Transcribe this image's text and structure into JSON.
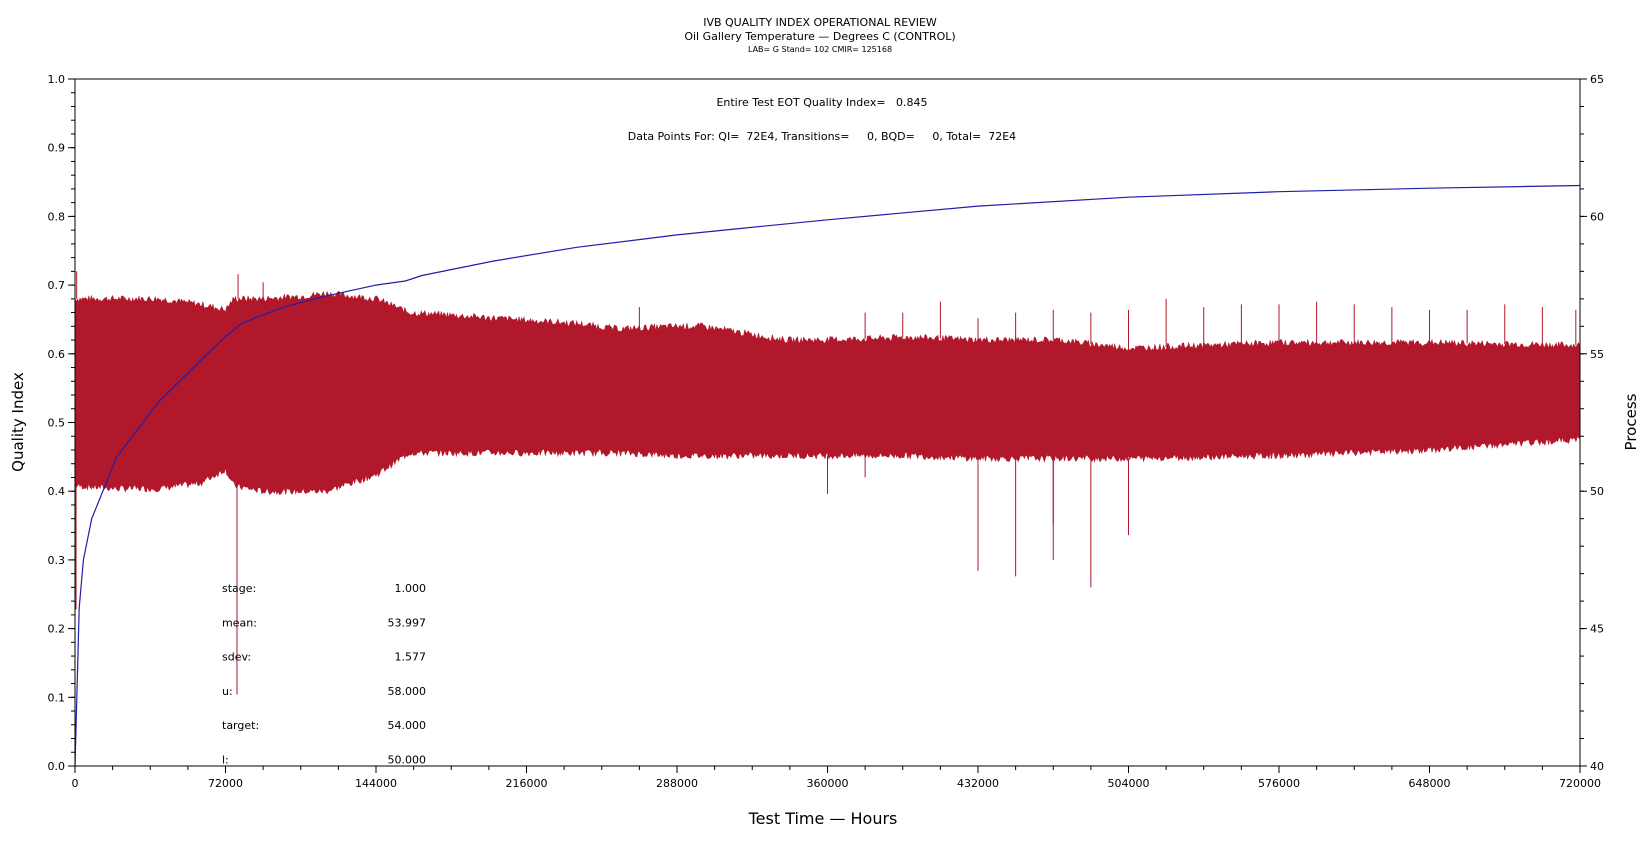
{
  "colors": {
    "ql": "#b2182b",
    "process": "#1f1fa8",
    "axis": "#000000",
    "background": "#ffffff"
  },
  "chart_data": {
    "type": "line",
    "title": "IVB QUALITY INDEX OPERATIONAL REVIEW",
    "subtitle": "Oil Gallery Temperature — Degrees C (CONTROL)",
    "subtitle2": "LAB= G Stand= 102 CMIR= 125168",
    "xlabel": "Test Time — Hours",
    "ylabel_left": "Quality Index",
    "ylabel_right": "Process",
    "xlim": [
      0,
      720000
    ],
    "ylim_left": [
      0,
      1
    ],
    "ylim_right": [
      40,
      65
    ],
    "x_ticks": [
      "0",
      "72000",
      "144000",
      "216000",
      "288000",
      "360000",
      "432000",
      "504000",
      "576000",
      "648000",
      "720000"
    ],
    "y_left_ticks": [
      "0.0",
      "0.1",
      "0.2",
      "0.3",
      "0.4",
      "0.5",
      "0.6",
      "0.7",
      "0.8",
      "0.9",
      "1.0"
    ],
    "y_right_ticks": [
      "40",
      "45",
      "50",
      "55",
      "60",
      "65"
    ],
    "annotations": {
      "eot": "Entire Test EOT Quality Index=   0.845",
      "points": "Data Points For: QI=  72E4, Transitions=     0, BQD=     0, Total=  72E4"
    },
    "stats": [
      {
        "label": "stage:",
        "value": "1.000"
      },
      {
        "label": "mean:",
        "value": "53.997"
      },
      {
        "label": "sdev:",
        "value": "1.577"
      },
      {
        "label": "u:",
        "value": "58.000"
      },
      {
        "label": "target:",
        "value": "54.000"
      },
      {
        "label": "l:",
        "value": "50.000"
      }
    ],
    "series": [
      {
        "role": "quality_index",
        "axis": "left",
        "x": [
          0,
          2000,
          4000,
          8000,
          20000,
          40000,
          60000,
          72000,
          76000,
          80000,
          100000,
          120000,
          144000,
          158000,
          166000,
          200000,
          240000,
          288000,
          320000,
          360000,
          432000,
          504000,
          576000,
          648000,
          720000
        ],
        "y": [
          0.0,
          0.23,
          0.3,
          0.36,
          0.45,
          0.53,
          0.59,
          0.625,
          0.635,
          0.645,
          0.668,
          0.684,
          0.7,
          0.706,
          0.714,
          0.735,
          0.755,
          0.773,
          0.783,
          0.795,
          0.815,
          0.828,
          0.836,
          0.841,
          0.845
        ]
      },
      {
        "role": "process",
        "axis": "right",
        "x": [
          0,
          20000,
          40000,
          60000,
          72000,
          76000,
          90000,
          110000,
          120000,
          144000,
          160000,
          200000,
          240000,
          260000,
          288000,
          300000,
          340000,
          360000,
          400000,
          432000,
          470000,
          504000,
          576000,
          648000,
          720000
        ],
        "upper": [
          57.0,
          57.0,
          57.0,
          56.8,
          56.6,
          57.0,
          57.0,
          57.1,
          57.2,
          57.0,
          56.5,
          56.3,
          56.1,
          55.9,
          56.0,
          56.0,
          55.5,
          55.5,
          55.6,
          55.5,
          55.5,
          55.2,
          55.4,
          55.4,
          55.3
        ],
        "lower": [
          50.2,
          50.1,
          50.1,
          50.3,
          50.8,
          50.2,
          50.0,
          50.0,
          50.0,
          50.6,
          51.4,
          51.4,
          51.4,
          51.4,
          51.3,
          51.3,
          51.3,
          51.3,
          51.3,
          51.2,
          51.2,
          51.2,
          51.3,
          51.5,
          51.9
        ]
      }
    ],
    "spikes": [
      {
        "x": 500,
        "value": 45.7
      },
      {
        "x": 800,
        "value": 58.0
      },
      {
        "x": 77500,
        "value": 42.6
      },
      {
        "x": 78000,
        "value": 57.9
      },
      {
        "x": 90000,
        "value": 57.6
      },
      {
        "x": 270000,
        "value": 56.7
      },
      {
        "x": 360000,
        "value": 49.9
      },
      {
        "x": 378000,
        "value": 56.5
      },
      {
        "x": 378000,
        "value": 50.5
      },
      {
        "x": 396000,
        "value": 56.5
      },
      {
        "x": 414000,
        "value": 56.9
      },
      {
        "x": 432000,
        "value": 47.1
      },
      {
        "x": 432000,
        "value": 56.3
      },
      {
        "x": 450000,
        "value": 46.9
      },
      {
        "x": 450000,
        "value": 56.5
      },
      {
        "x": 468000,
        "value": 48.8
      },
      {
        "x": 468000,
        "value": 47.5
      },
      {
        "x": 468000,
        "value": 56.6
      },
      {
        "x": 486000,
        "value": 46.5
      },
      {
        "x": 486000,
        "value": 56.5
      },
      {
        "x": 504000,
        "value": 48.4
      },
      {
        "x": 504000,
        "value": 56.6
      },
      {
        "x": 522000,
        "value": 57.0
      },
      {
        "x": 540000,
        "value": 56.7
      },
      {
        "x": 558000,
        "value": 56.8
      },
      {
        "x": 576000,
        "value": 56.8
      },
      {
        "x": 594000,
        "value": 56.9
      },
      {
        "x": 612000,
        "value": 56.8
      },
      {
        "x": 630000,
        "value": 56.7
      },
      {
        "x": 648000,
        "value": 56.6
      },
      {
        "x": 666000,
        "value": 56.6
      },
      {
        "x": 684000,
        "value": 56.8
      },
      {
        "x": 702000,
        "value": 56.7
      },
      {
        "x": 718000,
        "value": 56.6
      },
      {
        "x": 718000,
        "value": 51.8
      }
    ]
  }
}
